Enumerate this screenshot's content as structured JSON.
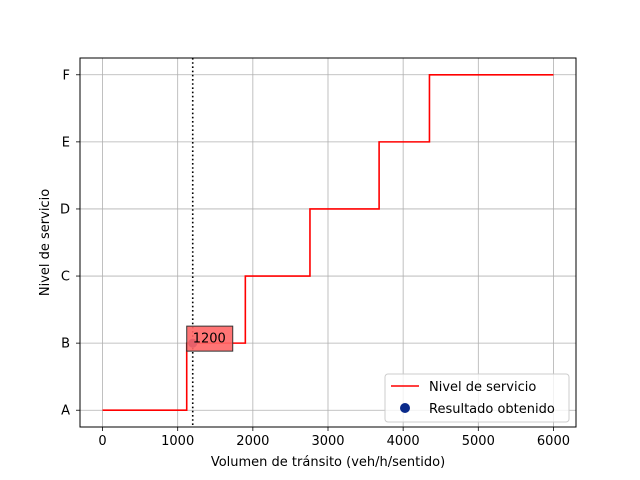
{
  "chart_data": {
    "type": "line",
    "title": "",
    "xlabel": "Volumen de tránsito (veh/h/sentido)",
    "ylabel": "Nivel de servicio",
    "xlim": [
      -300,
      6300
    ],
    "ylim": [
      -0.25,
      5.25
    ],
    "xticks": [
      0,
      1000,
      2000,
      3000,
      4000,
      5000,
      6000
    ],
    "xtick_labels": [
      "0",
      "1000",
      "2000",
      "3000",
      "4000",
      "5000",
      "6000"
    ],
    "yticks": [
      0,
      1,
      2,
      3,
      4,
      5
    ],
    "ytick_labels": [
      "A",
      "B",
      "C",
      "D",
      "E",
      "F"
    ],
    "grid": true,
    "legend_position": "lower-right",
    "series": [
      {
        "name": "Nivel de servicio",
        "style": "step-line",
        "color": "#ff0000",
        "points": [
          [
            0,
            0
          ],
          [
            1120,
            0
          ],
          [
            1120,
            1
          ],
          [
            1900,
            1
          ],
          [
            1900,
            2
          ],
          [
            2760,
            2
          ],
          [
            2760,
            3
          ],
          [
            3680,
            3
          ],
          [
            3680,
            4
          ],
          [
            4350,
            4
          ],
          [
            4350,
            5
          ],
          [
            6000,
            5
          ]
        ]
      },
      {
        "name": "Resultado obtenido",
        "style": "scatter",
        "color": "#0a2a8a",
        "points": [
          [
            1200,
            1
          ]
        ]
      }
    ],
    "reference_line": {
      "x": 1200,
      "style": "dotted",
      "color": "#000000"
    },
    "annotation": {
      "text": "1200",
      "x": 1200,
      "y": 1,
      "box_color": "#ff6666"
    }
  }
}
